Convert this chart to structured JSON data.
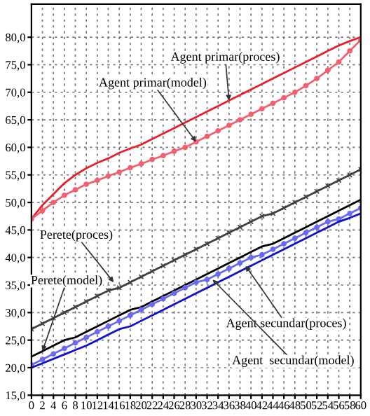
{
  "chart_data": {
    "type": "line",
    "x": [
      0,
      2,
      4,
      6,
      8,
      10,
      12,
      14,
      16,
      18,
      20,
      22,
      24,
      26,
      28,
      30,
      32,
      34,
      36,
      38,
      40,
      42,
      44,
      46,
      48,
      50,
      52,
      54,
      56,
      58,
      60
    ],
    "series": [
      {
        "color": "#e8202a",
        "marker": "none",
        "values": [
          47,
          49.5,
          51.5,
          53.5,
          55,
          56.2,
          57.2,
          58,
          59,
          59.8,
          60.5,
          61.5,
          62.5,
          63.5,
          64.5,
          65.5,
          66.5,
          67.5,
          68.5,
          69.5,
          70.5,
          71.5,
          72.5,
          73.5,
          74.5,
          75.5,
          76.5,
          77.5,
          78.5,
          79.3,
          80
        ]
      },
      {
        "color": "#f06070",
        "marker": "circle",
        "values": [
          47,
          48.5,
          50,
          51.3,
          52.3,
          53.3,
          54,
          54.8,
          55.5,
          56.3,
          57,
          57.8,
          58.5,
          59.3,
          60,
          61,
          62,
          63,
          64,
          65,
          66,
          67,
          68,
          69,
          70,
          71.2,
          72.5,
          74,
          75.5,
          77.5,
          79.5
        ]
      },
      {
        "color": "#404040",
        "marker": "cross",
        "values": [
          27,
          28,
          29,
          30,
          31,
          32,
          33,
          34,
          34.5,
          35.5,
          36.5,
          37.5,
          38.5,
          39.5,
          40.5,
          41.5,
          42.5,
          43.5,
          44.5,
          45.5,
          46.5,
          47.5,
          48,
          49,
          50,
          51,
          52,
          53,
          54,
          55,
          56
        ]
      },
      {
        "color": "#000000",
        "marker": "none",
        "values": [
          22,
          23,
          24,
          25,
          25.5,
          26.5,
          27.5,
          28.5,
          29.5,
          30.5,
          31,
          32,
          33,
          34,
          35,
          36,
          37,
          38,
          39,
          40,
          41,
          42,
          42.5,
          43.5,
          44.5,
          45.5,
          46.5,
          47.5,
          48.5,
          49.5,
          50.5
        ]
      },
      {
        "color": "#6a6af0",
        "marker": "circle",
        "values": [
          20.5,
          21.5,
          22.5,
          23.5,
          24.5,
          25.5,
          26.5,
          27.5,
          28.5,
          29.5,
          30.5,
          31.5,
          32.5,
          33.5,
          34.5,
          35.5,
          36,
          37,
          38,
          39,
          40,
          40.5,
          41.5,
          42.5,
          43.5,
          44.5,
          45.5,
          46.5,
          47,
          48,
          49
        ]
      },
      {
        "color": "#1010d0",
        "marker": "none",
        "values": [
          20,
          20.8,
          21.6,
          22.4,
          23.2,
          24,
          25,
          26,
          27,
          27.5,
          28.5,
          29.5,
          30.5,
          31.5,
          32.5,
          33.5,
          34.5,
          35.5,
          36.5,
          37.5,
          38.5,
          39.5,
          40.5,
          41.5,
          42.5,
          43.5,
          44.5,
          45.5,
          46.5,
          47.2,
          48
        ]
      }
    ],
    "annotations": [
      {
        "text": "Agent primar(proces)",
        "x": 36,
        "y": 68.5
      },
      {
        "text": "Agent primar(model)",
        "x": 30,
        "y": 61
      },
      {
        "text": "Perete(proces)",
        "x": 15,
        "y": 35.5
      },
      {
        "text": "Perete(model)",
        "x": 2,
        "y": 23
      },
      {
        "text": "Agent secundar(proces)",
        "x": 39,
        "y": 38.5
      },
      {
        "text": "Agent  secundar(model)",
        "x": 33,
        "y": 36
      }
    ],
    "xlim": [
      0,
      60
    ],
    "xticks": [
      0,
      2,
      4,
      6,
      8,
      10,
      12,
      14,
      16,
      18,
      20,
      22,
      24,
      26,
      28,
      30,
      32,
      34,
      36,
      38,
      40,
      42,
      44,
      46,
      48,
      50,
      52,
      54,
      56,
      58,
      60
    ],
    "ylim": [
      15,
      86
    ],
    "yticks": [
      {
        "value": 15,
        "label": "15,0"
      },
      {
        "value": 20,
        "label": "20,0"
      },
      {
        "value": 25,
        "label": "25,0"
      },
      {
        "value": 30,
        "label": "30,0"
      },
      {
        "value": 35,
        "label": "35,0"
      },
      {
        "value": 40,
        "label": "40,0"
      },
      {
        "value": 45,
        "label": "45,0"
      },
      {
        "value": 50,
        "label": "50,0"
      },
      {
        "value": 55,
        "label": "55,0"
      },
      {
        "value": 60,
        "label": "60,0"
      },
      {
        "value": 65,
        "label": "65,0"
      },
      {
        "value": 70,
        "label": "70,0"
      },
      {
        "value": 75,
        "label": "75,0"
      },
      {
        "value": 80,
        "label": "80,0"
      }
    ],
    "grid": true,
    "legend": false
  }
}
